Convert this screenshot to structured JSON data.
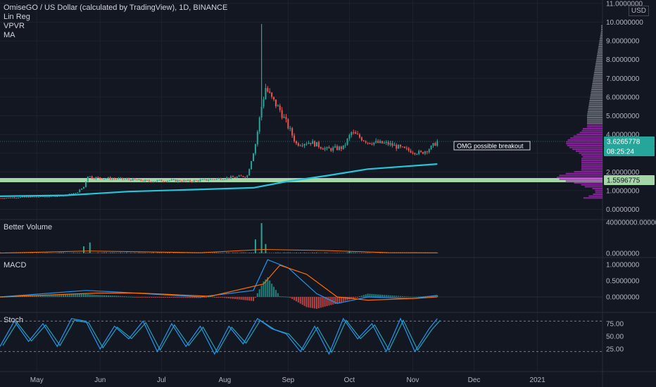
{
  "header": {
    "title": "OmiseGO / US Dollar (calculated by TradingView), 1D, BINANCE",
    "indicators": [
      "Lin Reg",
      "VPVR",
      "MA"
    ],
    "currency": "USD"
  },
  "panes": {
    "volume_title": "Better Volume",
    "macd_title": "MACD",
    "stoch_title": "Stoch"
  },
  "price_badges": {
    "last_price": "3.6265778",
    "countdown": "08:25:24",
    "horizontal_line": "1.5596775"
  },
  "annotation": "OMG possible breakout",
  "colors": {
    "background": "#131722",
    "up": "#26a69a",
    "down": "#ef5350",
    "ma": "#26c6da",
    "hline": "#a5d6a7",
    "vpvr": "#9c27b0",
    "vpvr_upper": "#787b86",
    "macd": "#2196f3",
    "signal": "#ff6d00",
    "stoch_k": "#2196f3",
    "stoch_d": "#26c6da"
  },
  "chart_data": [
    {
      "type": "line",
      "title": "OmiseGO / US Dollar (calculated by TradingView), 1D, BINANCE",
      "x_ticks": [
        "May",
        "Jun",
        "Jul",
        "Aug",
        "Sep",
        "Oct",
        "Nov",
        "Dec",
        "2021"
      ],
      "y_ticks": [
        "0.0000000",
        "1.0000000",
        "2.0000000",
        "3.0000000",
        "4.0000000",
        "5.0000000",
        "6.0000000",
        "7.0000000",
        "8.0000000",
        "9.0000000",
        "10.0000000",
        "11.0000000"
      ],
      "ylim": [
        0,
        11
      ],
      "price_points": [
        [
          "2020-04-13",
          0.6
        ],
        [
          "2020-04-25",
          0.65
        ],
        [
          "2020-05-10",
          0.7
        ],
        [
          "2020-05-20",
          0.85
        ],
        [
          "2020-05-24",
          1.2
        ],
        [
          "2020-05-26",
          1.8
        ],
        [
          "2020-05-28",
          1.7
        ],
        [
          "2020-06-05",
          1.65
        ],
        [
          "2020-06-15",
          1.6
        ],
        [
          "2020-06-25",
          1.5
        ],
        [
          "2020-07-05",
          1.55
        ],
        [
          "2020-07-15",
          1.5
        ],
        [
          "2020-07-25",
          1.6
        ],
        [
          "2020-08-05",
          1.7
        ],
        [
          "2020-08-12",
          1.8
        ],
        [
          "2020-08-16",
          3.5
        ],
        [
          "2020-08-19",
          5.5
        ],
        [
          "2020-08-21",
          6.5
        ],
        [
          "2020-08-24",
          5.9
        ],
        [
          "2020-08-28",
          5.3
        ],
        [
          "2020-09-02",
          4.2
        ],
        [
          "2020-09-05",
          3.5
        ],
        [
          "2020-09-12",
          3.6
        ],
        [
          "2020-09-20",
          3.2
        ],
        [
          "2020-09-28",
          3.3
        ],
        [
          "2020-10-02",
          4.1
        ],
        [
          "2020-10-10",
          3.6
        ],
        [
          "2020-10-20",
          3.5
        ],
        [
          "2020-10-28",
          3.2
        ],
        [
          "2020-11-05",
          3.0
        ],
        [
          "2020-11-10",
          3.3
        ],
        [
          "2020-11-13",
          3.63
        ]
      ],
      "price_high_spike": [
        "2020-08-19",
        9.9
      ],
      "ma_points": [
        [
          "2020-04-13",
          0.7
        ],
        [
          "2020-05-15",
          0.75
        ],
        [
          "2020-06-15",
          0.95
        ],
        [
          "2020-07-15",
          1.05
        ],
        [
          "2020-08-15",
          1.15
        ],
        [
          "2020-09-01",
          1.5
        ],
        [
          "2020-09-20",
          1.8
        ],
        [
          "2020-10-10",
          2.15
        ],
        [
          "2020-11-13",
          2.42
        ]
      ],
      "horizontal_level": 1.5596775,
      "last_price": 3.6265778
    },
    {
      "type": "bar",
      "title": "Better Volume",
      "y_ticks": [
        "0.0000000",
        "40000000.0000000"
      ],
      "ylim": [
        0,
        40000000
      ],
      "spikes": [
        [
          "2020-05-24",
          9000000
        ],
        [
          "2020-05-27",
          14000000
        ],
        [
          "2020-08-16",
          18000000
        ],
        [
          "2020-08-19",
          39000000
        ],
        [
          "2020-08-21",
          12000000
        ],
        [
          "2020-10-01",
          3000000
        ]
      ]
    },
    {
      "type": "line",
      "title": "MACD",
      "y_ticks": [
        "0.0000000",
        "0.5000000",
        "1.0000000"
      ],
      "ylim": [
        -0.3,
        1.2
      ],
      "macd_points": [
        [
          "2020-04-13",
          0.0
        ],
        [
          "2020-05-25",
          0.2
        ],
        [
          "2020-06-10",
          0.15
        ],
        [
          "2020-07-20",
          0.0
        ],
        [
          "2020-08-15",
          0.2
        ],
        [
          "2020-08-22",
          1.15
        ],
        [
          "2020-09-01",
          0.9
        ],
        [
          "2020-09-15",
          0.1
        ],
        [
          "2020-09-25",
          -0.2
        ],
        [
          "2020-10-10",
          0.0
        ],
        [
          "2020-11-01",
          -0.05
        ],
        [
          "2020-11-13",
          0.05
        ]
      ],
      "signal_points": [
        [
          "2020-04-13",
          0.0
        ],
        [
          "2020-05-30",
          0.12
        ],
        [
          "2020-06-20",
          0.12
        ],
        [
          "2020-07-25",
          0.02
        ],
        [
          "2020-08-20",
          0.4
        ],
        [
          "2020-08-28",
          0.98
        ],
        [
          "2020-09-10",
          0.7
        ],
        [
          "2020-09-25",
          0.0
        ],
        [
          "2020-10-10",
          -0.1
        ],
        [
          "2020-11-01",
          -0.05
        ],
        [
          "2020-11-13",
          0.0
        ]
      ]
    },
    {
      "type": "line",
      "title": "Stoch",
      "y_ticks": [
        "25.00",
        "50.00",
        "75.00"
      ],
      "ylim": [
        0,
        100
      ],
      "bands": [
        20,
        80
      ],
      "k_points": [
        [
          "2020-04-13",
          30
        ],
        [
          "2020-04-20",
          80
        ],
        [
          "2020-04-27",
          40
        ],
        [
          "2020-05-04",
          75
        ],
        [
          "2020-05-11",
          30
        ],
        [
          "2020-05-18",
          85
        ],
        [
          "2020-05-25",
          80
        ],
        [
          "2020-06-01",
          25
        ],
        [
          "2020-06-08",
          70
        ],
        [
          "2020-06-15",
          45
        ],
        [
          "2020-06-22",
          80
        ],
        [
          "2020-06-29",
          20
        ],
        [
          "2020-07-06",
          75
        ],
        [
          "2020-07-13",
          30
        ],
        [
          "2020-07-20",
          70
        ],
        [
          "2020-07-27",
          15
        ],
        [
          "2020-08-03",
          70
        ],
        [
          "2020-08-10",
          35
        ],
        [
          "2020-08-17",
          85
        ],
        [
          "2020-08-24",
          65
        ],
        [
          "2020-08-31",
          55
        ],
        [
          "2020-09-07",
          20
        ],
        [
          "2020-09-14",
          70
        ],
        [
          "2020-09-21",
          15
        ],
        [
          "2020-09-28",
          85
        ],
        [
          "2020-10-05",
          45
        ],
        [
          "2020-10-12",
          75
        ],
        [
          "2020-10-19",
          20
        ],
        [
          "2020-10-26",
          85
        ],
        [
          "2020-11-02",
          20
        ],
        [
          "2020-11-09",
          65
        ],
        [
          "2020-11-13",
          85
        ]
      ]
    }
  ]
}
